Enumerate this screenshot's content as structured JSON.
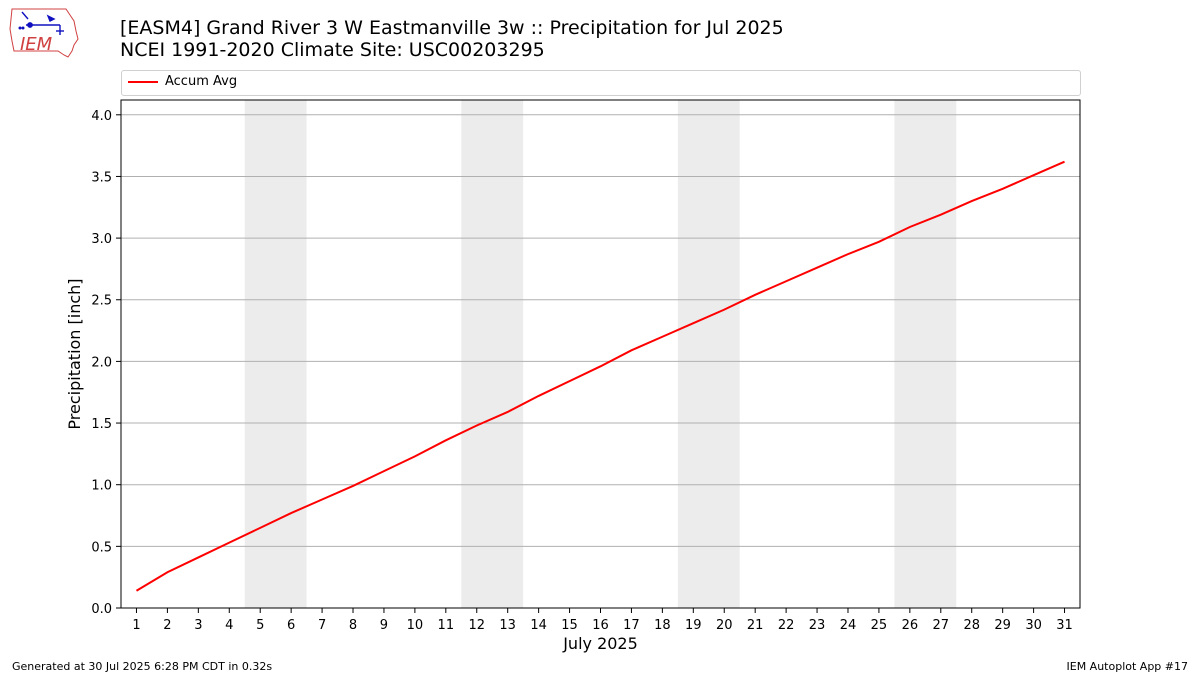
{
  "logo": {
    "text": "IEM"
  },
  "chart_data": {
    "type": "line",
    "title": "[EASM4] Grand River 3 W Eastmanville 3w :: Precipitation for Jul 2025",
    "subtitle": "NCEI 1991-2020 Climate Site: USC00203295",
    "xlabel": "July 2025",
    "ylabel": "Precipitation [inch]",
    "ylim": [
      0,
      4.12
    ],
    "xlim": [
      0.5,
      31.5
    ],
    "yticks": [
      "0.0",
      "0.5",
      "1.0",
      "1.5",
      "2.0",
      "2.5",
      "3.0",
      "3.5",
      "4.0"
    ],
    "x": [
      1,
      2,
      3,
      4,
      5,
      6,
      7,
      8,
      9,
      10,
      11,
      12,
      13,
      14,
      15,
      16,
      17,
      18,
      19,
      20,
      21,
      22,
      23,
      24,
      25,
      26,
      27,
      28,
      29,
      30,
      31
    ],
    "grid": "horizontal",
    "legend_position": "top",
    "weekend_shading": [
      [
        5,
        6
      ],
      [
        12,
        13
      ],
      [
        19,
        20
      ],
      [
        26,
        27
      ]
    ],
    "series": [
      {
        "name": "Accum Avg",
        "color": "#ff0000",
        "values": [
          0.14,
          0.29,
          0.41,
          0.53,
          0.65,
          0.77,
          0.88,
          0.99,
          1.11,
          1.23,
          1.36,
          1.48,
          1.59,
          1.72,
          1.84,
          1.96,
          2.09,
          2.2,
          2.31,
          2.42,
          2.54,
          2.65,
          2.76,
          2.87,
          2.97,
          3.09,
          3.19,
          3.3,
          3.4,
          3.51,
          3.62
        ]
      }
    ]
  },
  "footer": {
    "left": "Generated at 30 Jul 2025 6:28 PM CDT in 0.32s",
    "right": "IEM Autoplot App #17"
  }
}
